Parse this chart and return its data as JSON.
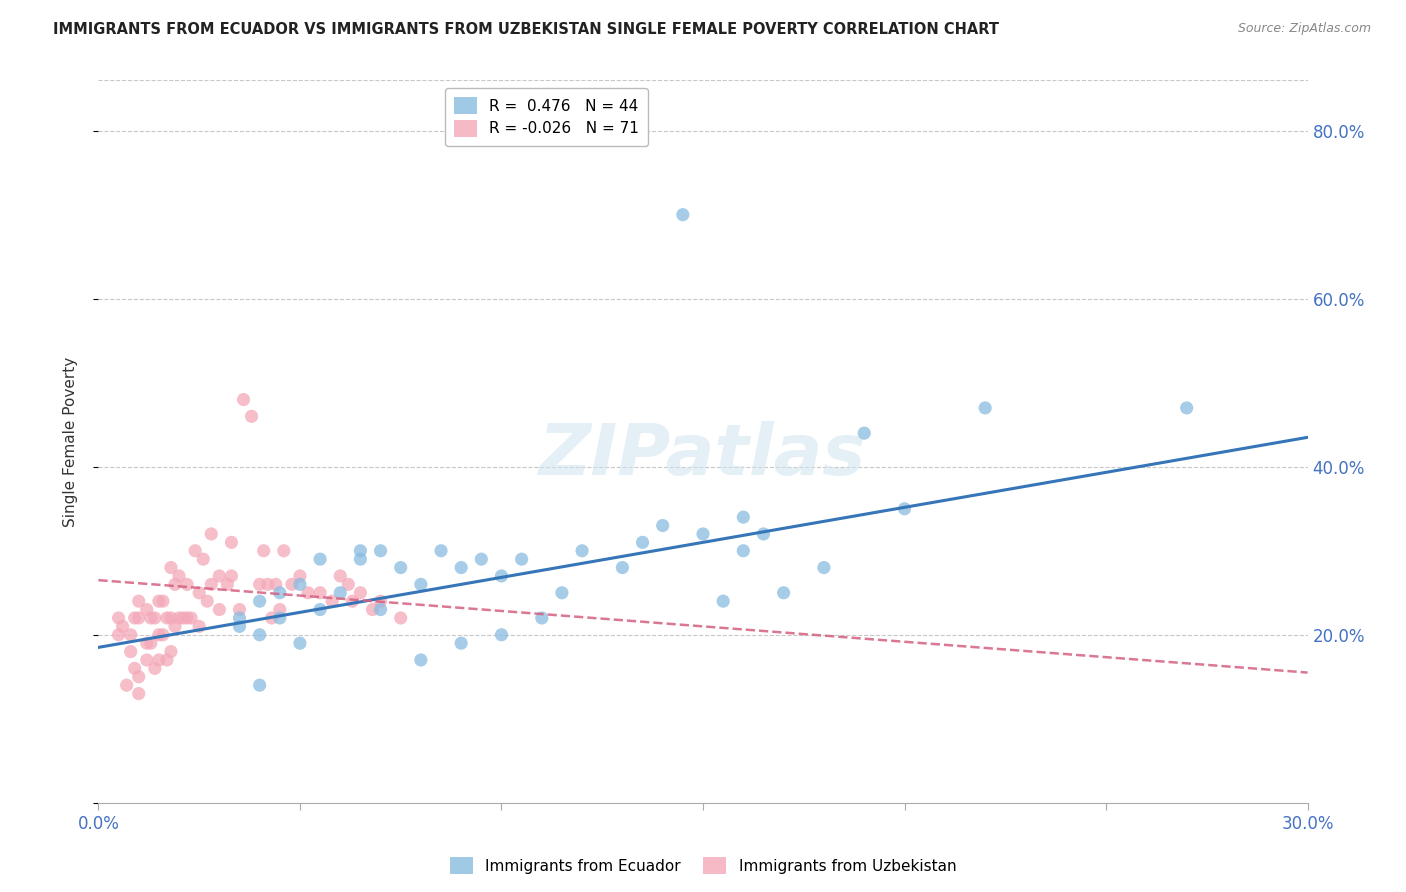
{
  "title": "IMMIGRANTS FROM ECUADOR VS IMMIGRANTS FROM UZBEKISTAN SINGLE FEMALE POVERTY CORRELATION CHART",
  "source": "Source: ZipAtlas.com",
  "ylabel": "Single Female Poverty",
  "xlim": [
    0.0,
    0.3
  ],
  "ylim": [
    0.0,
    0.86
  ],
  "ytick_positions": [
    0.0,
    0.2,
    0.4,
    0.6,
    0.8
  ],
  "xtick_positions": [
    0.0,
    0.05,
    0.1,
    0.15,
    0.2,
    0.25,
    0.3
  ],
  "ecuador_color": "#89bce0",
  "uzbekistan_color": "#f4a8b8",
  "ecuador_R": 0.476,
  "ecuador_N": 44,
  "uzbekistan_R": -0.026,
  "uzbekistan_N": 71,
  "ecuador_line_color": "#3676b8",
  "uzbekistan_line_color": "#d46080",
  "watermark": "ZIPatlas",
  "ecuador_label": "Immigrants from Ecuador",
  "uzbekistan_label": "Immigrants from Uzbekistan",
  "ecuador_x": [
    0.035,
    0.035,
    0.04,
    0.04,
    0.04,
    0.045,
    0.045,
    0.05,
    0.05,
    0.055,
    0.055,
    0.06,
    0.065,
    0.065,
    0.07,
    0.07,
    0.075,
    0.08,
    0.08,
    0.085,
    0.09,
    0.09,
    0.095,
    0.1,
    0.1,
    0.105,
    0.11,
    0.115,
    0.12,
    0.13,
    0.135,
    0.14,
    0.145,
    0.15,
    0.155,
    0.16,
    0.16,
    0.165,
    0.17,
    0.18,
    0.19,
    0.2,
    0.22,
    0.27
  ],
  "ecuador_y": [
    0.21,
    0.22,
    0.14,
    0.2,
    0.24,
    0.22,
    0.25,
    0.19,
    0.26,
    0.23,
    0.29,
    0.25,
    0.29,
    0.3,
    0.23,
    0.3,
    0.28,
    0.17,
    0.26,
    0.3,
    0.19,
    0.28,
    0.29,
    0.2,
    0.27,
    0.29,
    0.22,
    0.25,
    0.3,
    0.28,
    0.31,
    0.33,
    0.7,
    0.32,
    0.24,
    0.34,
    0.3,
    0.32,
    0.25,
    0.28,
    0.44,
    0.35,
    0.47,
    0.47
  ],
  "uzbekistan_x": [
    0.005,
    0.005,
    0.006,
    0.007,
    0.008,
    0.008,
    0.009,
    0.009,
    0.01,
    0.01,
    0.01,
    0.01,
    0.012,
    0.012,
    0.012,
    0.013,
    0.013,
    0.014,
    0.014,
    0.015,
    0.015,
    0.015,
    0.016,
    0.016,
    0.017,
    0.017,
    0.018,
    0.018,
    0.018,
    0.019,
    0.019,
    0.02,
    0.02,
    0.021,
    0.022,
    0.022,
    0.023,
    0.024,
    0.025,
    0.025,
    0.026,
    0.027,
    0.028,
    0.028,
    0.03,
    0.03,
    0.032,
    0.033,
    0.033,
    0.035,
    0.036,
    0.038,
    0.04,
    0.041,
    0.042,
    0.043,
    0.044,
    0.045,
    0.046,
    0.048,
    0.05,
    0.052,
    0.055,
    0.058,
    0.06,
    0.062,
    0.063,
    0.065,
    0.068,
    0.07,
    0.075
  ],
  "uzbekistan_y": [
    0.2,
    0.22,
    0.21,
    0.14,
    0.18,
    0.2,
    0.16,
    0.22,
    0.13,
    0.15,
    0.22,
    0.24,
    0.17,
    0.19,
    0.23,
    0.19,
    0.22,
    0.16,
    0.22,
    0.17,
    0.2,
    0.24,
    0.2,
    0.24,
    0.17,
    0.22,
    0.18,
    0.22,
    0.28,
    0.21,
    0.26,
    0.22,
    0.27,
    0.22,
    0.22,
    0.26,
    0.22,
    0.3,
    0.21,
    0.25,
    0.29,
    0.24,
    0.26,
    0.32,
    0.23,
    0.27,
    0.26,
    0.27,
    0.31,
    0.23,
    0.48,
    0.46,
    0.26,
    0.3,
    0.26,
    0.22,
    0.26,
    0.23,
    0.3,
    0.26,
    0.27,
    0.25,
    0.25,
    0.24,
    0.27,
    0.26,
    0.24,
    0.25,
    0.23,
    0.24,
    0.22
  ],
  "ecuador_line_x": [
    0.0,
    0.3
  ],
  "ecuador_line_y": [
    0.185,
    0.435
  ],
  "uzbekistan_line_x": [
    0.0,
    0.3
  ],
  "uzbekistan_line_y": [
    0.265,
    0.155
  ]
}
